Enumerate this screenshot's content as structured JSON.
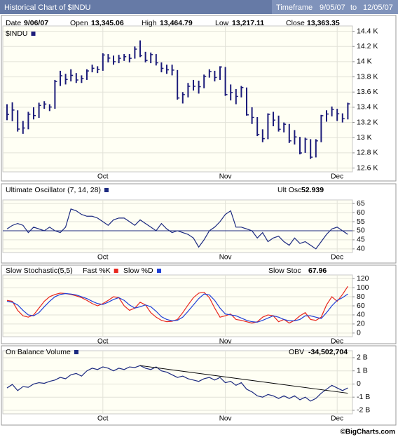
{
  "header": {
    "title": "Historical Chart of $INDU",
    "timeframe": "Timeframe",
    "start": "9/05/07",
    "to": "to",
    "end": "12/05/07"
  },
  "footer": "©BigCharts.com",
  "chart_data": [
    {
      "type": "ohlc",
      "name": "$INDU",
      "color": "#1c1c7a",
      "quote": {
        "date_label": "Date",
        "date": "9/06/07",
        "open_label": "Open",
        "open": "13,345.06",
        "high_label": "High",
        "high": "13,464.79",
        "low_label": "Low",
        "low": "13,217.11",
        "close_label": "Close",
        "close": "13,363.35"
      },
      "categories": [
        null,
        null,
        null,
        null,
        null,
        null,
        null,
        null,
        null,
        null,
        null,
        null,
        null,
        null,
        null,
        null,
        null,
        null,
        "Oct",
        null,
        null,
        null,
        null,
        null,
        null,
        null,
        null,
        null,
        null,
        null,
        null,
        null,
        null,
        null,
        null,
        null,
        null,
        null,
        null,
        null,
        null,
        "Nov",
        null,
        null,
        null,
        null,
        null,
        null,
        null,
        null,
        null,
        null,
        null,
        null,
        null,
        null,
        null,
        null,
        null,
        null,
        null,
        null,
        "Dec",
        null,
        null
      ],
      "high": [
        13440,
        13464.79,
        13360,
        13220,
        13340,
        13400,
        13460,
        13480,
        13440,
        13760,
        13880,
        13840,
        13900,
        13850,
        13820,
        13900,
        13960,
        13940,
        14110,
        14100,
        14080,
        14090,
        14100,
        14100,
        14200,
        14280,
        14130,
        14120,
        14100,
        13990,
        13960,
        13960,
        13890,
        13600,
        13720,
        13760,
        13750,
        13830,
        13900,
        13880,
        13940,
        13930,
        13700,
        13640,
        13680,
        13660,
        13400,
        13270,
        13110,
        13320,
        13340,
        13290,
        13200,
        13180,
        13100,
        13010,
        13000,
        12980,
        12980,
        13300,
        13360,
        13410,
        13380,
        13320,
        13460
      ],
      "low": [
        13230,
        13217.11,
        13080,
        13050,
        13110,
        13240,
        13260,
        13380,
        13350,
        13380,
        13680,
        13700,
        13740,
        13720,
        13720,
        13760,
        13860,
        13850,
        13880,
        13990,
        13960,
        13980,
        14010,
        13990,
        14040,
        14060,
        13990,
        13980,
        13950,
        13860,
        13840,
        13820,
        13500,
        13450,
        13530,
        13620,
        13580,
        13650,
        13790,
        13740,
        13760,
        13550,
        13490,
        13440,
        13530,
        13290,
        13180,
        13020,
        12940,
        12980,
        13150,
        13080,
        13070,
        12930,
        12910,
        12780,
        12800,
        12720,
        12740,
        12940,
        13210,
        13280,
        13220,
        13200,
        13240
      ],
      "close": [
        13306,
        13363.35,
        13113,
        13127,
        13308,
        13291,
        13424,
        13442,
        13403,
        13739,
        13815,
        13766,
        13820,
        13759,
        13779,
        13878,
        13913,
        13896,
        14088,
        14047,
        14000,
        14044,
        14066,
        14044,
        14165,
        14078,
        14016,
        14093,
        13985,
        13912,
        13893,
        13889,
        13522,
        13567,
        13676,
        13676,
        13671,
        13807,
        13870,
        13792,
        13930,
        13567,
        13595,
        13543,
        13660,
        13300,
        13266,
        13042,
        12987,
        13307,
        13231,
        13110,
        13176,
        12958,
        13010,
        12799,
        12980,
        12743,
        12958,
        13289,
        13311,
        13372,
        13314,
        13249,
        13445
      ],
      "ylim": [
        12550,
        14470
      ],
      "yticks": [
        {
          "value": 12600,
          "label": "12.6 K"
        },
        {
          "value": 12800,
          "label": "12.8 K"
        },
        {
          "value": 13000,
          "label": "13 K"
        },
        {
          "value": 13200,
          "label": "13.2 K"
        },
        {
          "value": 13400,
          "label": "13.4 K"
        },
        {
          "value": 13600,
          "label": "13.6 K"
        },
        {
          "value": 13800,
          "label": "13.8 K"
        },
        {
          "value": 14000,
          "label": "14 K"
        },
        {
          "value": 14200,
          "label": "14.2 K"
        },
        {
          "value": 14400,
          "label": "14.4 K"
        }
      ],
      "grid": true
    },
    {
      "type": "line",
      "title": "Ultimate Oscillator (7, 14, 28)",
      "reading_label": "Ult Osc",
      "series": [
        {
          "color": "#1c2a80",
          "values": [
            51,
            52.939,
            54,
            53,
            49,
            52,
            51,
            50,
            52,
            50,
            49,
            52,
            62,
            61,
            59,
            58,
            58,
            57,
            55,
            53,
            56,
            57,
            57,
            55,
            53,
            56,
            54,
            52,
            50,
            54,
            51,
            49,
            50,
            49,
            48,
            46,
            41,
            45,
            50,
            52,
            55,
            59,
            61,
            52,
            52,
            51,
            50,
            46,
            49,
            44,
            46,
            47,
            44,
            42,
            46,
            43,
            44,
            42,
            40,
            44,
            48,
            51,
            52,
            50,
            48
          ]
        }
      ],
      "reference_line": 50,
      "ylim": [
        38,
        67
      ],
      "yticks": [
        40,
        45,
        50,
        55,
        60,
        65
      ],
      "grid": true
    },
    {
      "type": "line",
      "title": "Slow Stochastic(5,5)",
      "reading_label": "Slow Stoc",
      "series": [
        {
          "name": "Fast %K",
          "color": "#e8261c",
          "values": [
            72,
            70,
            50,
            38,
            35,
            40,
            55,
            70,
            80,
            85,
            88,
            87,
            85,
            82,
            78,
            72,
            65,
            60,
            65,
            72,
            80,
            78,
            60,
            50,
            55,
            68,
            62,
            45,
            35,
            28,
            25,
            26,
            30,
            45,
            62,
            78,
            88,
            90,
            78,
            55,
            35,
            38,
            42,
            30,
            28,
            25,
            22,
            25,
            35,
            40,
            38,
            25,
            30,
            22,
            28,
            38,
            45,
            30,
            28,
            35,
            62,
            80,
            70,
            85,
            103
          ]
        },
        {
          "name": "Slow %D",
          "color": "#1f3fd6",
          "values": [
            70,
            67.96,
            62,
            50,
            40,
            38,
            45,
            58,
            70,
            80,
            85,
            87,
            86,
            84,
            80,
            76,
            70,
            65,
            63,
            68,
            74,
            78,
            72,
            62,
            55,
            58,
            62,
            58,
            48,
            36,
            30,
            27,
            28,
            35,
            48,
            62,
            76,
            86,
            84,
            72,
            55,
            42,
            40,
            38,
            33,
            28,
            25,
            24,
            28,
            33,
            38,
            35,
            30,
            27,
            27,
            30,
            38,
            38,
            35,
            32,
            45,
            60,
            72,
            78,
            86
          ]
        }
      ],
      "ylim": [
        -8,
        128
      ],
      "yticks": [
        0,
        20,
        40,
        60,
        80,
        100,
        120
      ],
      "grid": true
    },
    {
      "type": "line",
      "title": "On Balance Volume",
      "reading_label": "OBV",
      "reading": "-34,502,704",
      "series": [
        {
          "color": "#1c2a80",
          "values": [
            -300000000,
            -34502704,
            -500000000,
            -200000000,
            -250000000,
            0,
            100000000,
            50000000,
            200000000,
            300000000,
            500000000,
            400000000,
            700000000,
            800000000,
            600000000,
            1000000000,
            1200000000,
            1100000000,
            1300000000,
            1200000000,
            1000000000,
            1200000000,
            1100000000,
            1300000000,
            1250000000,
            1400000000,
            1200000000,
            1100000000,
            1300000000,
            1000000000,
            900000000,
            700000000,
            500000000,
            600000000,
            400000000,
            300000000,
            200000000,
            400000000,
            500000000,
            300000000,
            500000000,
            100000000,
            200000000,
            -100000000,
            100000000,
            -400000000,
            -600000000,
            -900000000,
            -1000000000,
            -800000000,
            -900000000,
            -1100000000,
            -900000000,
            -1100000000,
            -900000000,
            -1200000000,
            -1000000000,
            -1300000000,
            -1100000000,
            -700000000,
            -400000000,
            -100000000,
            -300000000,
            -500000000,
            -300000000
          ]
        }
      ],
      "trendline": {
        "x": [
          25,
          64
        ],
        "values": [
          1400000000,
          -700000000
        ]
      },
      "ylim": [
        -2270000000,
        2530000000
      ],
      "yticks": [
        {
          "value": 2000000000,
          "label": "2 B"
        },
        {
          "value": 1000000000,
          "label": "1 B"
        },
        0,
        {
          "value": -1000000000,
          "label": "-1 B"
        },
        {
          "value": -2000000000,
          "label": "-2 B"
        }
      ],
      "grid": true
    }
  ]
}
